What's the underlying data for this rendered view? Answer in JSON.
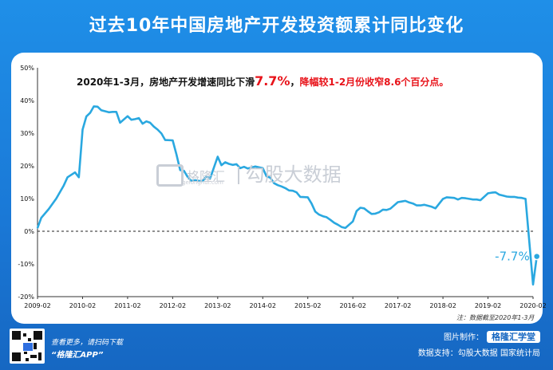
{
  "title": "过去10年中国房地产开发投资额累计同比变化",
  "headline": {
    "part1": "2020年1-3月，房地产开发增速同比下滑",
    "highlight": "7.7%",
    "part2": "，",
    "part3": "降幅较1-2月份收窄8.6个百分点。"
  },
  "watermark": {
    "brand": "格隆汇",
    "data": "勾股大数据",
    "small": "gelonghui.com"
  },
  "footnote": "注：数据截至2020年1-3月",
  "promo": {
    "line1": "查看更多，请扫码下载",
    "line2": "“格隆汇APP”"
  },
  "credits": {
    "made_by_label": "图片制作：",
    "made_by_brand": "格隆汇学堂",
    "source": "数据支持：勾股大数据  国家统计局"
  },
  "colors": {
    "line": "#2aa8e0",
    "highlight": "#e8131a",
    "background": "#1a78d6",
    "zero_line": "#222222"
  },
  "chart_data": {
    "type": "line",
    "title": "过去10年中国房地产开发投资额累计同比变化",
    "xlabel": "",
    "ylabel": "",
    "y_unit": "%",
    "ylim": [
      -20,
      50
    ],
    "y_ticks": [
      -20,
      -10,
      0,
      10,
      20,
      30,
      40,
      50
    ],
    "y_tick_labels": [
      "-20%",
      "-10%",
      "0%",
      "10%",
      "20%",
      "30%",
      "40%",
      "50%"
    ],
    "x_ticks": [
      "2009-02",
      "2010-02",
      "2011-02",
      "2012-02",
      "2013-02",
      "2014-02",
      "2015-02",
      "2016-02",
      "2017-02",
      "2018-02",
      "2019-02",
      "2020-02"
    ],
    "grid": false,
    "zero_line": "dashed",
    "end_label": "-7.7%",
    "series": [
      {
        "points": [
          [
            "2009-02",
            1.0
          ],
          [
            "2009-03",
            4.1
          ],
          [
            "2009-05",
            6.8
          ],
          [
            "2009-07",
            10.0
          ],
          [
            "2009-09",
            14.0
          ],
          [
            "2009-10",
            16.5
          ],
          [
            "2009-12",
            18.0
          ],
          [
            "2010-01",
            16.5
          ],
          [
            "2010-02",
            31.1
          ],
          [
            "2010-03",
            35.1
          ],
          [
            "2010-04",
            36.2
          ],
          [
            "2010-05",
            38.2
          ],
          [
            "2010-06",
            38.1
          ],
          [
            "2010-07",
            37.0
          ],
          [
            "2010-08",
            36.7
          ],
          [
            "2010-09",
            36.4
          ],
          [
            "2010-10",
            36.5
          ],
          [
            "2010-11",
            36.5
          ],
          [
            "2010-12",
            33.2
          ],
          [
            "2011-02",
            35.2
          ],
          [
            "2011-03",
            34.1
          ],
          [
            "2011-04",
            34.3
          ],
          [
            "2011-05",
            34.6
          ],
          [
            "2011-06",
            32.9
          ],
          [
            "2011-07",
            33.6
          ],
          [
            "2011-08",
            33.2
          ],
          [
            "2011-09",
            32.0
          ],
          [
            "2011-10",
            31.1
          ],
          [
            "2011-11",
            29.9
          ],
          [
            "2011-12",
            27.9
          ],
          [
            "2012-02",
            27.8
          ],
          [
            "2012-03",
            23.5
          ],
          [
            "2012-04",
            18.7
          ],
          [
            "2012-05",
            18.5
          ],
          [
            "2012-06",
            16.6
          ],
          [
            "2012-07",
            15.4
          ],
          [
            "2012-08",
            15.6
          ],
          [
            "2012-09",
            15.4
          ],
          [
            "2012-10",
            15.4
          ],
          [
            "2012-11",
            16.7
          ],
          [
            "2012-12",
            16.2
          ],
          [
            "2013-02",
            22.8
          ],
          [
            "2013-03",
            20.2
          ],
          [
            "2013-04",
            21.1
          ],
          [
            "2013-05",
            20.6
          ],
          [
            "2013-06",
            20.3
          ],
          [
            "2013-07",
            20.5
          ],
          [
            "2013-08",
            19.3
          ],
          [
            "2013-09",
            19.7
          ],
          [
            "2013-10",
            19.2
          ],
          [
            "2013-11",
            19.5
          ],
          [
            "2013-12",
            19.8
          ],
          [
            "2014-02",
            19.3
          ],
          [
            "2014-03",
            16.8
          ],
          [
            "2014-04",
            16.4
          ],
          [
            "2014-05",
            14.7
          ],
          [
            "2014-06",
            14.1
          ],
          [
            "2014-07",
            13.7
          ],
          [
            "2014-08",
            13.2
          ],
          [
            "2014-09",
            12.5
          ],
          [
            "2014-10",
            12.4
          ],
          [
            "2014-11",
            11.9
          ],
          [
            "2014-12",
            10.5
          ],
          [
            "2015-02",
            10.4
          ],
          [
            "2015-03",
            8.5
          ],
          [
            "2015-04",
            6.0
          ],
          [
            "2015-05",
            5.1
          ],
          [
            "2015-06",
            4.6
          ],
          [
            "2015-07",
            4.3
          ],
          [
            "2015-08",
            3.5
          ],
          [
            "2015-09",
            2.6
          ],
          [
            "2015-10",
            2.0
          ],
          [
            "2015-11",
            1.3
          ],
          [
            "2015-12",
            1.0
          ],
          [
            "2016-02",
            3.0
          ],
          [
            "2016-03",
            6.2
          ],
          [
            "2016-04",
            7.2
          ],
          [
            "2016-05",
            7.0
          ],
          [
            "2016-06",
            6.1
          ],
          [
            "2016-07",
            5.3
          ],
          [
            "2016-08",
            5.4
          ],
          [
            "2016-09",
            5.8
          ],
          [
            "2016-10",
            6.6
          ],
          [
            "2016-11",
            6.5
          ],
          [
            "2016-12",
            6.9
          ],
          [
            "2017-02",
            8.9
          ],
          [
            "2017-03",
            9.1
          ],
          [
            "2017-04",
            9.3
          ],
          [
            "2017-05",
            8.8
          ],
          [
            "2017-06",
            8.5
          ],
          [
            "2017-07",
            7.9
          ],
          [
            "2017-08",
            7.9
          ],
          [
            "2017-09",
            8.1
          ],
          [
            "2017-10",
            7.8
          ],
          [
            "2017-11",
            7.5
          ],
          [
            "2017-12",
            7.0
          ],
          [
            "2018-02",
            9.9
          ],
          [
            "2018-03",
            10.4
          ],
          [
            "2018-04",
            10.3
          ],
          [
            "2018-05",
            10.2
          ],
          [
            "2018-06",
            9.7
          ],
          [
            "2018-07",
            10.2
          ],
          [
            "2018-08",
            10.1
          ],
          [
            "2018-09",
            9.9
          ],
          [
            "2018-10",
            9.7
          ],
          [
            "2018-11",
            9.7
          ],
          [
            "2018-12",
            9.5
          ],
          [
            "2019-02",
            11.6
          ],
          [
            "2019-03",
            11.8
          ],
          [
            "2019-04",
            11.9
          ],
          [
            "2019-05",
            11.2
          ],
          [
            "2019-06",
            10.9
          ],
          [
            "2019-07",
            10.6
          ],
          [
            "2019-08",
            10.5
          ],
          [
            "2019-09",
            10.5
          ],
          [
            "2019-10",
            10.3
          ],
          [
            "2019-11",
            10.2
          ],
          [
            "2019-12",
            9.9
          ],
          [
            "2020-02",
            -16.3
          ],
          [
            "2020-03",
            -7.7
          ]
        ]
      }
    ]
  }
}
